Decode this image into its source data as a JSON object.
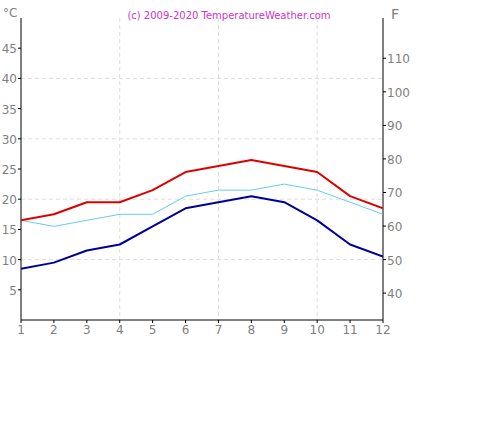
{
  "chart_data": {
    "type": "line",
    "title": "(c) 2009-2020 TemperatureWeather.com",
    "y_label": "°C",
    "y2_label": "F",
    "x": [
      1,
      2,
      3,
      4,
      5,
      6,
      7,
      8,
      9,
      10,
      11,
      12
    ],
    "xlim": [
      1,
      12
    ],
    "xticks": [
      1,
      2,
      3,
      4,
      5,
      6,
      7,
      8,
      9,
      10,
      11,
      12
    ],
    "ylim": [
      0,
      50
    ],
    "yticks": [
      5,
      10,
      15,
      20,
      25,
      30,
      35,
      40,
      45
    ],
    "y2lim": [
      32,
      122
    ],
    "y2ticks": [
      40,
      50,
      60,
      70,
      80,
      90,
      100,
      110
    ],
    "grid": true,
    "series": [
      {
        "color": "#dd0000",
        "values": [
          16.5,
          17.5,
          19.5,
          19.5,
          21.5,
          24.5,
          25.5,
          26.5,
          25.5,
          24.5,
          20.5,
          18.5
        ]
      },
      {
        "color": "#000099",
        "values": [
          8.5,
          9.5,
          11.5,
          12.5,
          15.5,
          18.5,
          19.5,
          20.5,
          19.5,
          16.5,
          12.5,
          10.5
        ]
      },
      {
        "color": "#66ccee",
        "values": [
          16.5,
          15.5,
          16.5,
          17.5,
          17.5,
          20.5,
          21.5,
          21.5,
          22.5,
          21.5,
          19.5,
          17.5
        ]
      }
    ]
  }
}
